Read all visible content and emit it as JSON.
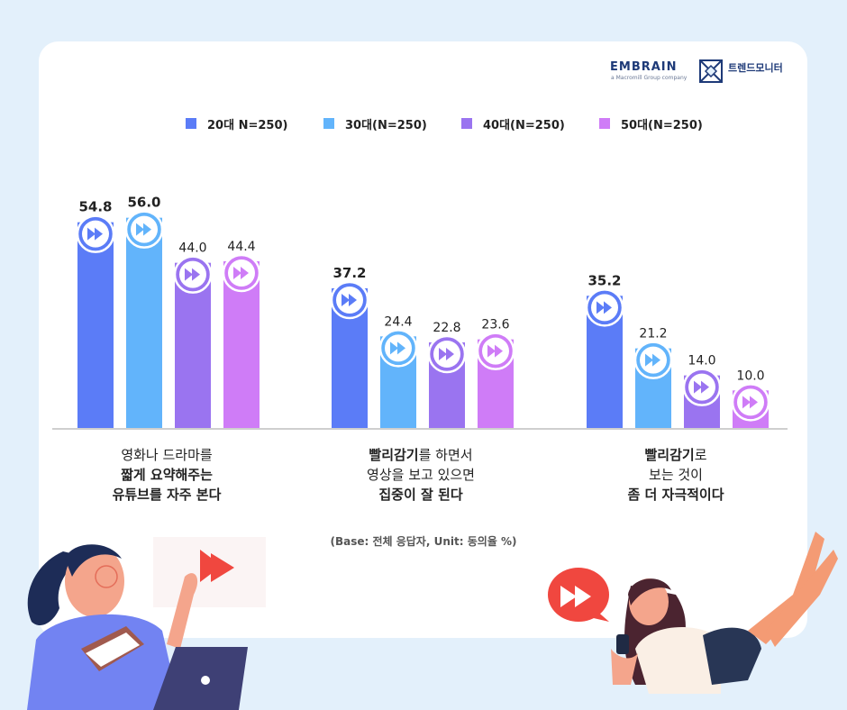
{
  "brand": {
    "logo_text": "EMBRAIN",
    "logo_sub": "a Macromill Group company",
    "logo_right": "트렌드모니터"
  },
  "colors": {
    "series": [
      "#5b7cf7",
      "#62b4fb",
      "#9a74f0",
      "#cf7cf7"
    ],
    "background": "#e3f0fb",
    "card": "#ffffff"
  },
  "chart_data": {
    "type": "bar",
    "series": [
      {
        "name": "20대 N=250)",
        "values": [
          54.8,
          37.2,
          35.2
        ]
      },
      {
        "name": "30대(N=250)",
        "values": [
          56.0,
          24.4,
          21.2
        ]
      },
      {
        "name": "40대(N=250)",
        "values": [
          44.0,
          22.8,
          14.0
        ]
      },
      {
        "name": "50대(N=250)",
        "values": [
          44.4,
          23.6,
          10.0
        ]
      }
    ],
    "value_labels": [
      [
        "54.8",
        "56.0",
        "44.0",
        "44.4"
      ],
      [
        "37.2",
        "24.4",
        "22.8",
        "23.6"
      ],
      [
        "35.2",
        "21.2",
        "14.0",
        "10.0"
      ]
    ],
    "highlight": [
      [
        0,
        1
      ],
      [
        0
      ],
      [
        0
      ]
    ],
    "categories": [
      [
        {
          "bold": false,
          "text": "영화나 드라마를"
        },
        {
          "bold": true,
          "text": "짧게 요약해주는"
        },
        {
          "bold": true,
          "text": "유튜브를 자주 본다"
        }
      ],
      [
        {
          "bold": true,
          "text": "빨리감기",
          "rest": "를 하면서"
        },
        {
          "bold": false,
          "text": "영상을 보고 있으면"
        },
        {
          "bold": true,
          "text": "집중이 잘 된다"
        }
      ],
      [
        {
          "bold": true,
          "text": "빨리감기",
          "rest": "로"
        },
        {
          "bold": false,
          "text": "보는 것이"
        },
        {
          "bold": true,
          "text": "좀 더 자극적이다"
        }
      ]
    ],
    "ylim": [
      0,
      60
    ],
    "grid": false,
    "legend_position": "top"
  },
  "footnote": "(Base: 전체 응답자, Unit: 동의율 %)"
}
